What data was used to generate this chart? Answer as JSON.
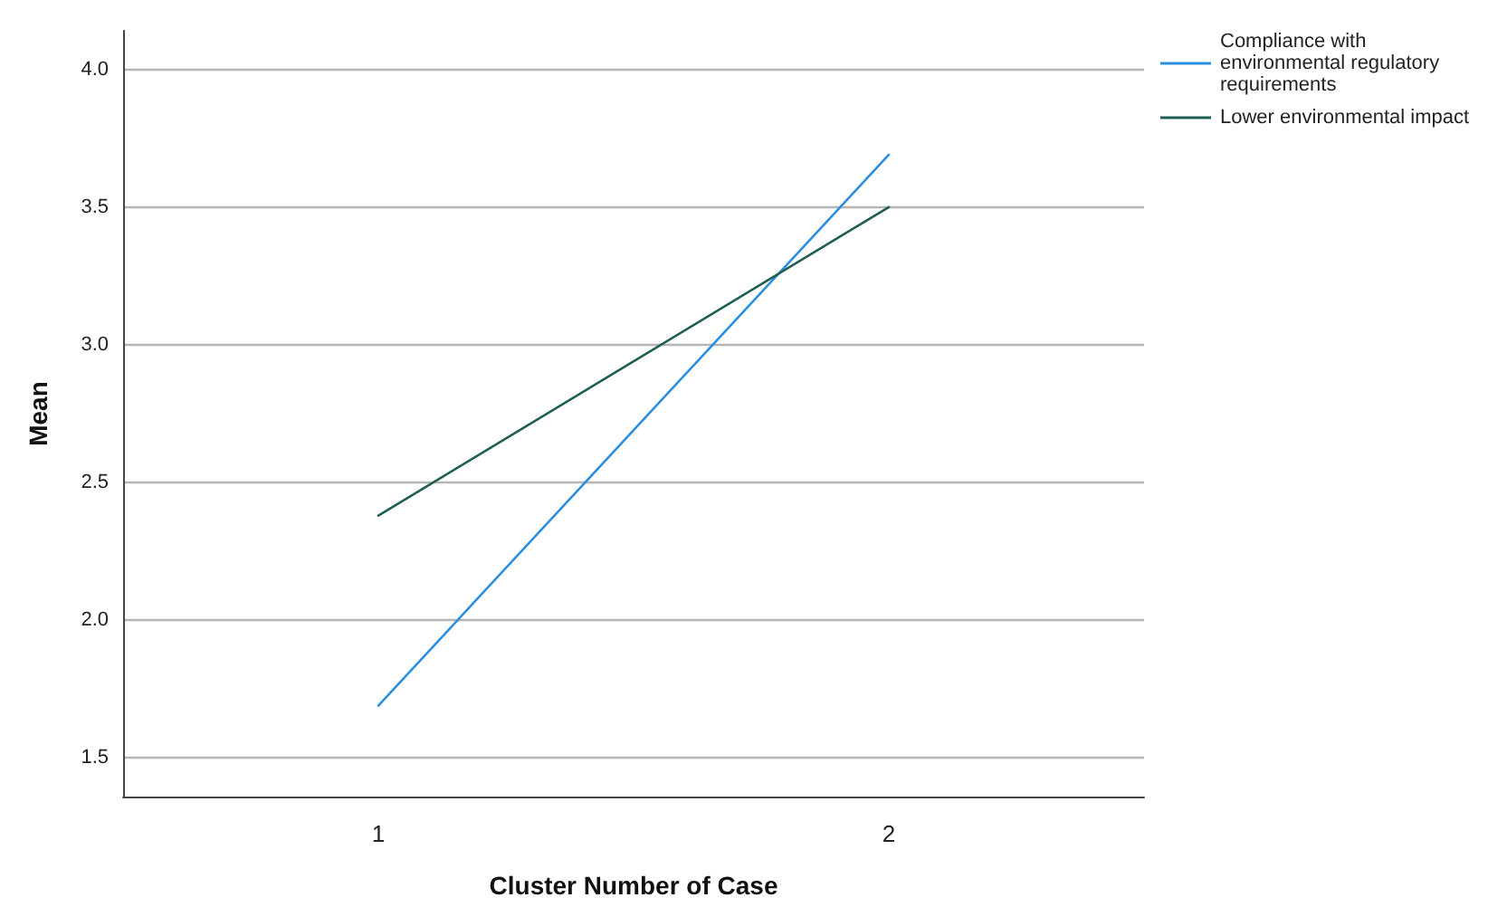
{
  "chart_data": {
    "type": "line",
    "xlabel": "Cluster Number of Case",
    "ylabel": "Mean",
    "categories": [
      "1",
      "2"
    ],
    "series": [
      {
        "name": "Compliance with environmental regulatory requirements",
        "color": "#2a8fe0",
        "values": [
          1.69,
          3.69
        ]
      },
      {
        "name": "Lower environmental impact",
        "color": "#1f5e52",
        "values": [
          2.38,
          3.5
        ]
      }
    ],
    "ylim": [
      1.36,
      4.14
    ],
    "yticks": [
      {
        "value": 1.5,
        "label": "1.5"
      },
      {
        "value": 2,
        "label": "2.0"
      },
      {
        "value": 2.5,
        "label": "2.5"
      },
      {
        "value": 3,
        "label": "3.0"
      },
      {
        "value": 3.5,
        "label": "3.5"
      },
      {
        "value": 4,
        "label": "4.0"
      }
    ],
    "grid": "y",
    "legend": "top right",
    "marker": "none",
    "line_style": "solid"
  }
}
